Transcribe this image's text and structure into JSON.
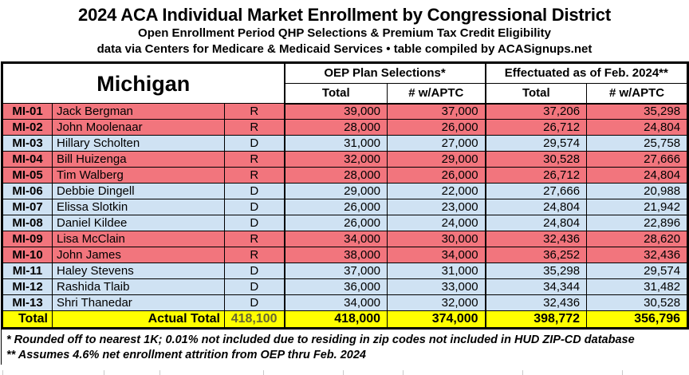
{
  "header": {
    "title": "2024 ACA Individual Market Enrollment by Congressional District",
    "subtitle1": "Open Enrollment Period QHP Selections & Premium Tax Credit Eligibility",
    "subtitle2": "data via Centers for Medicare & Medicaid Services • table compiled by ACASignups.net"
  },
  "chart_data": {
    "type": "table",
    "state": "Michigan",
    "group_headers": [
      "OEP Plan Selections*",
      "Effectuated as of Feb. 2024**"
    ],
    "sub_headers": [
      "Total",
      "# w/APTC",
      "Total",
      "# w/APTC"
    ],
    "rows": [
      {
        "district": "MI-01",
        "rep": "Jack Bergman",
        "party": "R",
        "oep_total": "39,000",
        "oep_aptc": "37,000",
        "eff_total": "37,206",
        "eff_aptc": "35,298"
      },
      {
        "district": "MI-02",
        "rep": "John Moolenaar",
        "party": "R",
        "oep_total": "28,000",
        "oep_aptc": "26,000",
        "eff_total": "26,712",
        "eff_aptc": "24,804"
      },
      {
        "district": "MI-03",
        "rep": "Hillary Scholten",
        "party": "D",
        "oep_total": "31,000",
        "oep_aptc": "27,000",
        "eff_total": "29,574",
        "eff_aptc": "25,758"
      },
      {
        "district": "MI-04",
        "rep": "Bill Huizenga",
        "party": "R",
        "oep_total": "32,000",
        "oep_aptc": "29,000",
        "eff_total": "30,528",
        "eff_aptc": "27,666"
      },
      {
        "district": "MI-05",
        "rep": "Tim Walberg",
        "party": "R",
        "oep_total": "28,000",
        "oep_aptc": "26,000",
        "eff_total": "26,712",
        "eff_aptc": "24,804"
      },
      {
        "district": "MI-06",
        "rep": "Debbie Dingell",
        "party": "D",
        "oep_total": "29,000",
        "oep_aptc": "22,000",
        "eff_total": "27,666",
        "eff_aptc": "20,988"
      },
      {
        "district": "MI-07",
        "rep": "Elissa Slotkin",
        "party": "D",
        "oep_total": "26,000",
        "oep_aptc": "23,000",
        "eff_total": "24,804",
        "eff_aptc": "21,942"
      },
      {
        "district": "MI-08",
        "rep": "Daniel Kildee",
        "party": "D",
        "oep_total": "26,000",
        "oep_aptc": "24,000",
        "eff_total": "24,804",
        "eff_aptc": "22,896"
      },
      {
        "district": "MI-09",
        "rep": "Lisa McClain",
        "party": "R",
        "oep_total": "34,000",
        "oep_aptc": "30,000",
        "eff_total": "32,436",
        "eff_aptc": "28,620"
      },
      {
        "district": "MI-10",
        "rep": "John James",
        "party": "R",
        "oep_total": "38,000",
        "oep_aptc": "34,000",
        "eff_total": "36,252",
        "eff_aptc": "32,436"
      },
      {
        "district": "MI-11",
        "rep": "Haley Stevens",
        "party": "D",
        "oep_total": "37,000",
        "oep_aptc": "31,000",
        "eff_total": "35,298",
        "eff_aptc": "29,574"
      },
      {
        "district": "MI-12",
        "rep": "Rashida Tlaib",
        "party": "D",
        "oep_total": "36,000",
        "oep_aptc": "33,000",
        "eff_total": "34,344",
        "eff_aptc": "31,482"
      },
      {
        "district": "MI-13",
        "rep": "Shri Thanedar",
        "party": "D",
        "oep_total": "34,000",
        "oep_aptc": "32,000",
        "eff_total": "32,436",
        "eff_aptc": "30,528"
      }
    ],
    "total_row": {
      "label": "Total",
      "actual_label": "Actual Total",
      "actual_total": "418,100",
      "oep_total": "418,000",
      "oep_aptc": "374,000",
      "eff_total": "398,772",
      "eff_aptc": "356,796"
    }
  },
  "footnotes": {
    "line1": "* Rounded off to nearest 1K; 0.01% not included due to residing in zip codes not included in HUD ZIP-CD database",
    "line2": "** Assumes 4.6% net enrollment attrition from OEP thru Feb. 2024"
  },
  "colors": {
    "republican_row": "#f2757d",
    "democrat_row": "#cfe2f3",
    "total_row_bg": "#ffff00",
    "actual_total_text": "#666633"
  }
}
